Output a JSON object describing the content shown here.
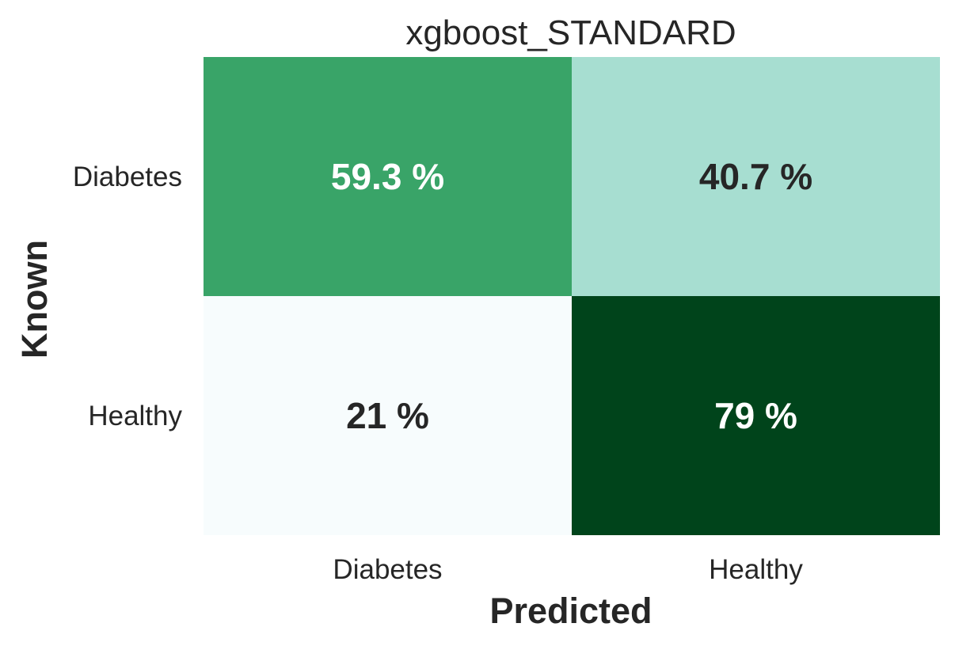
{
  "chart_data": {
    "type": "heatmap",
    "title": "xgboost_STANDARD",
    "xlabel": "Predicted",
    "ylabel": "Known",
    "x_categories": [
      "Diabetes",
      "Healthy"
    ],
    "y_categories": [
      "Diabetes",
      "Healthy"
    ],
    "values": [
      [
        59.3,
        40.7
      ],
      [
        21,
        79
      ]
    ],
    "cell_labels": [
      [
        "59.3 %",
        "40.7 %"
      ],
      [
        "21 %",
        "79 %"
      ]
    ],
    "value_range": [
      21,
      79
    ],
    "colormap": "BuGn",
    "colors": {
      "low": "#f5fbfb",
      "high": "#00441b",
      "text_dark": "#262626",
      "text_light": "#ffffff"
    },
    "colorbar": false,
    "grid": false
  }
}
